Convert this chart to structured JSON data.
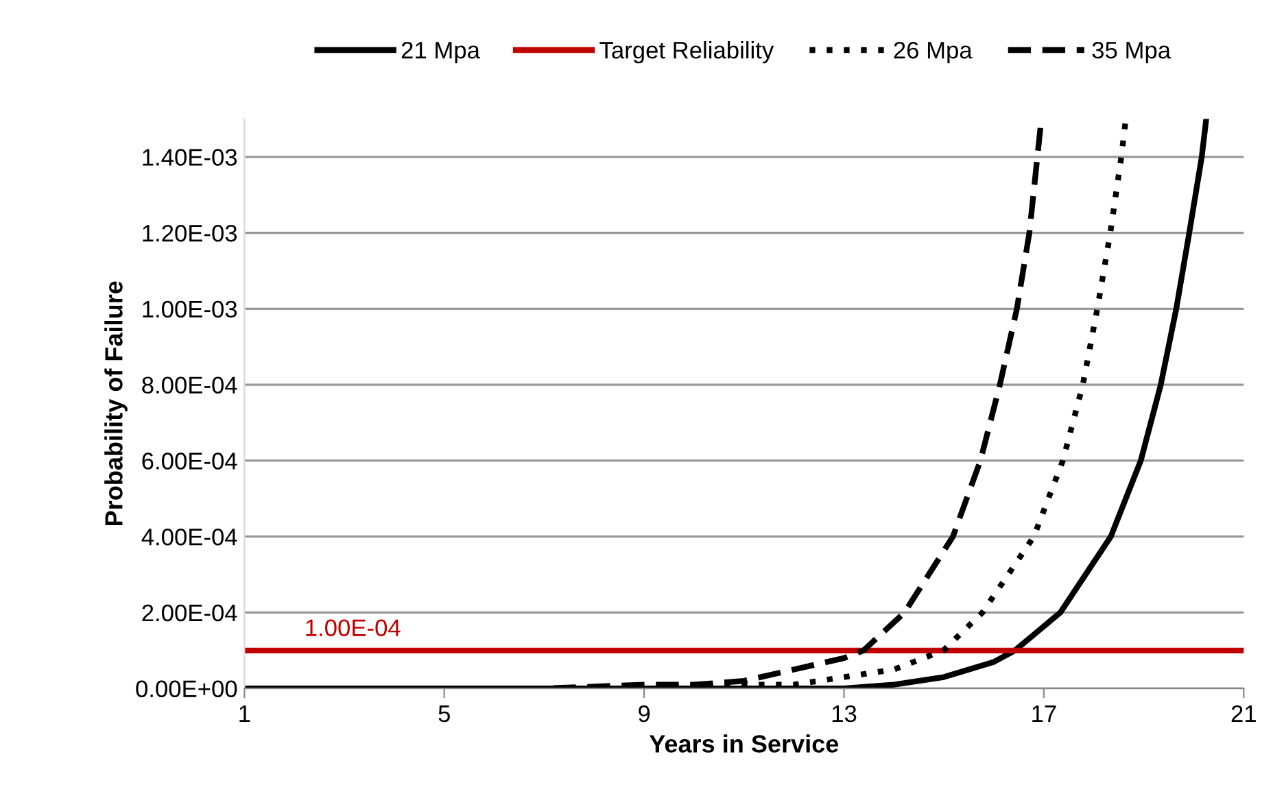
{
  "chart_data": {
    "type": "line",
    "xlabel": "Years in Service",
    "ylabel": "Probability of Failure",
    "xlim": [
      1,
      21
    ],
    "xticks": [
      1,
      5,
      9,
      13,
      17,
      21
    ],
    "ylim": [
      0,
      0.0015
    ],
    "yticks": [
      {
        "value": 0,
        "label": "0.00E+00"
      },
      {
        "value": 0.0002,
        "label": "2.00E-04"
      },
      {
        "value": 0.0004,
        "label": "4.00E-04"
      },
      {
        "value": 0.0006,
        "label": "6.00E-04"
      },
      {
        "value": 0.0008,
        "label": "8.00E-04"
      },
      {
        "value": 0.001,
        "label": "1.00E-03"
      },
      {
        "value": 0.0012,
        "label": "1.20E-03"
      },
      {
        "value": 0.0014,
        "label": "1.40E-03"
      }
    ],
    "grid": "y",
    "legend": "top",
    "series": [
      {
        "name": "21 Mpa",
        "color": "#000000",
        "line_style": "solid",
        "x": [
          1,
          5,
          9,
          11,
          13,
          14,
          15,
          16,
          16.42,
          17.33,
          18.34,
          18.94,
          19.34,
          19.65,
          19.91,
          20.16,
          20.25
        ],
        "values": [
          0,
          0,
          0,
          0,
          0,
          1e-05,
          3e-05,
          7e-05,
          0.0001,
          0.0002,
          0.0004,
          0.0006,
          0.0008,
          0.001,
          0.0012,
          0.0014,
          0.0015
        ]
      },
      {
        "name": "Target Reliability",
        "color": "#c00000",
        "line_style": "solid",
        "x": [
          1,
          21
        ],
        "values": [
          0.0001,
          0.0001
        ]
      },
      {
        "name": "26 Mpa",
        "color": "#000000",
        "line_style": "dotted",
        "x": [
          1,
          5,
          9,
          11,
          12,
          13,
          14,
          14.99,
          15.77,
          16.8,
          17.38,
          17.78,
          18.07,
          18.33,
          18.55,
          18.64
        ],
        "values": [
          0,
          0,
          0,
          1e-05,
          1e-05,
          3e-05,
          5e-05,
          0.0001,
          0.0002,
          0.0004,
          0.0006,
          0.0008,
          0.001,
          0.0012,
          0.0014,
          0.0015
        ]
      },
      {
        "name": "35 Mpa",
        "color": "#000000",
        "line_style": "dashed",
        "x": [
          1,
          5,
          7,
          9,
          10,
          11,
          12,
          13,
          13.39,
          14.21,
          15.18,
          15.73,
          16.12,
          16.46,
          16.71,
          16.87,
          16.95
        ],
        "values": [
          0,
          0,
          0,
          1e-05,
          1e-05,
          2e-05,
          5e-05,
          8e-05,
          0.0001,
          0.0002,
          0.0004,
          0.0006,
          0.0008,
          0.001,
          0.0012,
          0.0014,
          0.0015
        ]
      }
    ],
    "annotations": [
      {
        "text": "1.00E-04",
        "x": 2.2,
        "y": 0.0001
      }
    ]
  }
}
